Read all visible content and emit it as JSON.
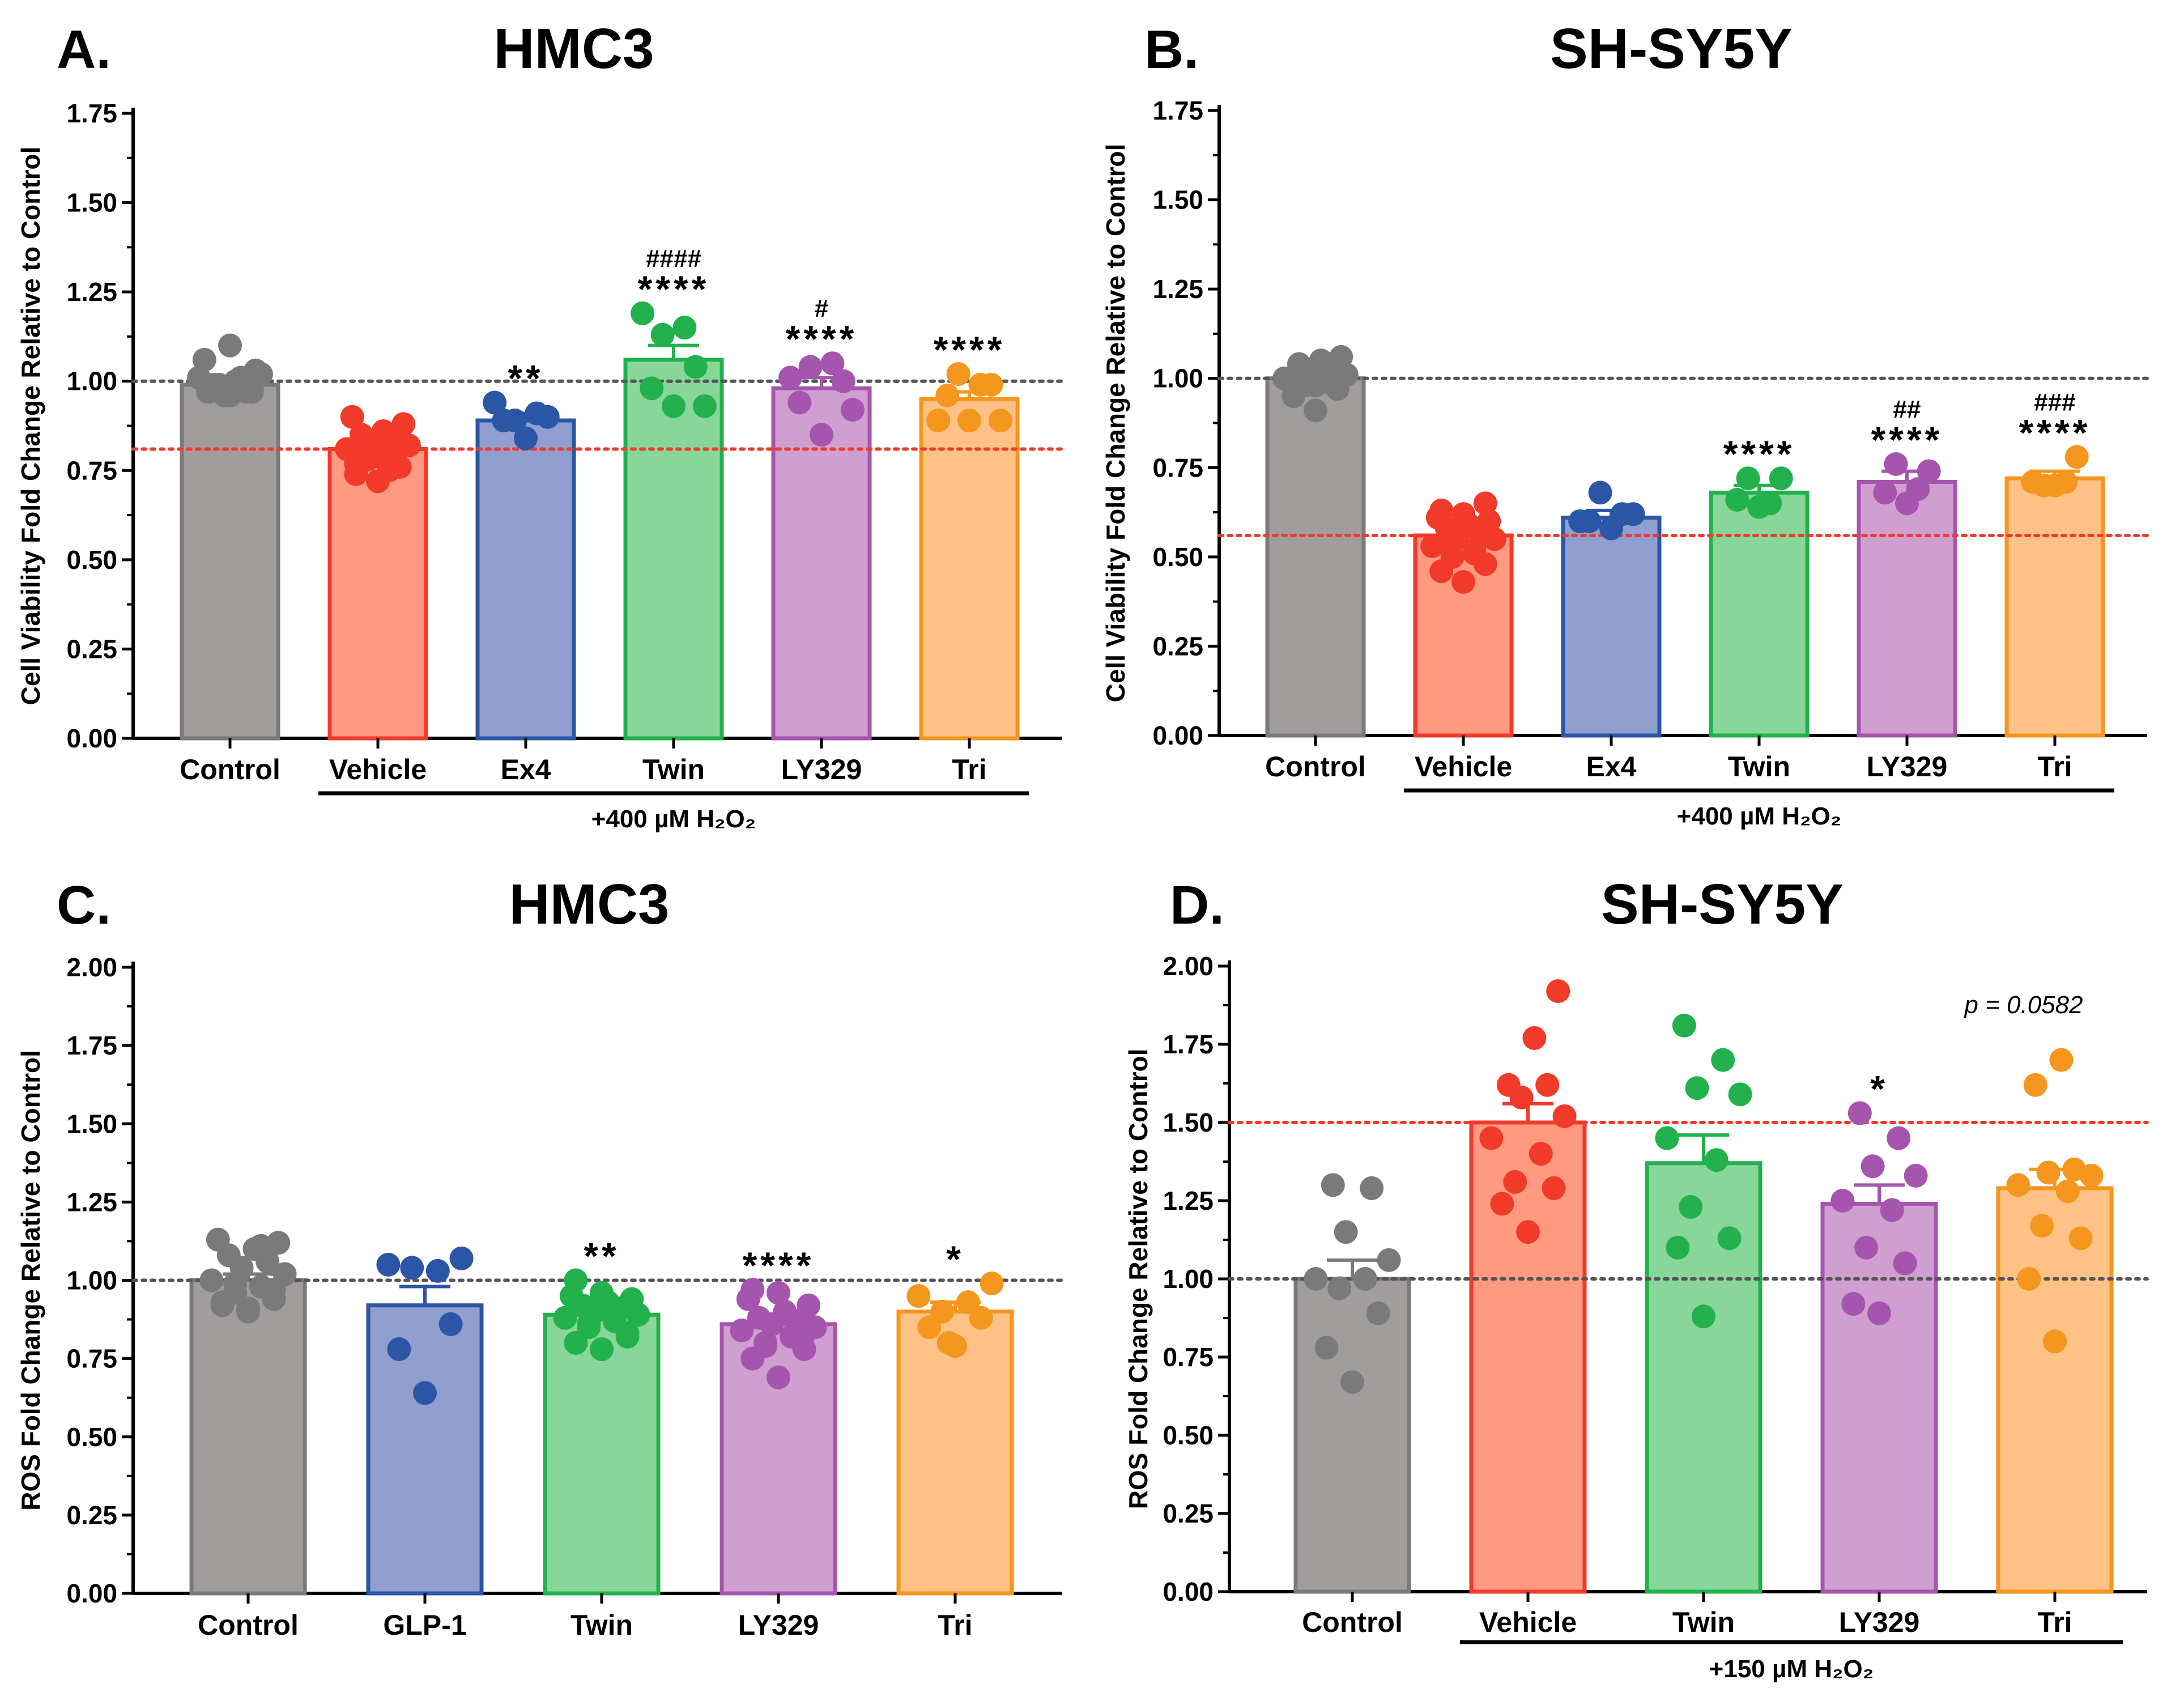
{
  "chart_data": [
    {
      "type": "bar",
      "panel": "A.",
      "title": "HMC3",
      "ylabel": "Cell Viability Fold Change Relative to Control",
      "ylim": [
        0,
        1.75
      ],
      "yticks": [
        "0.00",
        "0.25",
        "0.50",
        "0.75",
        "1.00",
        "1.25",
        "1.50",
        "1.75"
      ],
      "categories": [
        "Control",
        "Vehicle",
        "Ex4",
        "Twin",
        "LY329",
        "Tri"
      ],
      "values": [
        0.99,
        0.81,
        0.89,
        1.06,
        0.98,
        0.95
      ],
      "errors": [
        0.01,
        0.01,
        0.02,
        0.04,
        0.03,
        0.02
      ],
      "colors": [
        "#7a7a7a",
        "#f23a2a",
        "#2b56a6",
        "#22b14c",
        "#a555ad",
        "#f5961e"
      ],
      "fills": [
        "#a29d9d",
        "#ff9a80",
        "#909ed0",
        "#88d69a",
        "#cfa0cf",
        "#ffc286"
      ],
      "points": [
        [
          0.96,
          0.97,
          0.98,
          0.99,
          1.0,
          1.01,
          1.02,
          0.96,
          0.97,
          0.99,
          1.0,
          1.03,
          1.06,
          1.1,
          0.98,
          0.97,
          0.99,
          1.01
        ],
        [
          0.72,
          0.74,
          0.76,
          0.78,
          0.8,
          0.81,
          0.82,
          0.83,
          0.84,
          0.85,
          0.86,
          0.88,
          0.9,
          0.79,
          0.77,
          0.82,
          0.8,
          0.75
        ],
        [
          0.84,
          0.89,
          0.9,
          0.89,
          0.91,
          0.94
        ],
        [
          0.93,
          0.98,
          1.04,
          1.13,
          1.15,
          1.19,
          0.93
        ],
        [
          0.85,
          0.94,
          1.0,
          1.04,
          1.05,
          1.01,
          0.92
        ],
        [
          0.89,
          0.96,
          0.99,
          1.02,
          0.99,
          0.89,
          0.89
        ]
      ],
      "significance": [
        "",
        "",
        "**",
        "****",
        "****",
        "****"
      ],
      "hash": [
        "",
        "",
        "",
        "####",
        "#",
        ""
      ],
      "reference_lines": [
        {
          "value": 1.0,
          "color": "#555555"
        },
        {
          "value": 0.81,
          "color": "#f23a2a"
        }
      ],
      "group_bracket": {
        "label": "+400 µM H₂O₂",
        "from": 1,
        "to": 5
      }
    },
    {
      "type": "bar",
      "panel": "B.",
      "title": "SH-SY5Y",
      "ylabel": "Cell Viability Fold Change Relative to Control",
      "ylim": [
        0,
        1.75
      ],
      "yticks": [
        "0.00",
        "0.25",
        "0.50",
        "0.75",
        "1.00",
        "1.25",
        "1.50",
        "1.75"
      ],
      "categories": [
        "Control",
        "Vehicle",
        "Ex4",
        "Twin",
        "LY329",
        "Tri"
      ],
      "values": [
        1.0,
        0.56,
        0.61,
        0.68,
        0.71,
        0.72
      ],
      "errors": [
        0.01,
        0.01,
        0.02,
        0.02,
        0.03,
        0.02
      ],
      "colors": [
        "#7a7a7a",
        "#f23a2a",
        "#2b56a6",
        "#22b14c",
        "#a555ad",
        "#f5961e"
      ],
      "fills": [
        "#a29d9d",
        "#ff9a80",
        "#909ed0",
        "#88d69a",
        "#cfa0cf",
        "#ffc286"
      ],
      "points": [
        [
          0.91,
          0.95,
          0.97,
          0.98,
          0.99,
          1.0,
          1.01,
          1.02,
          1.03,
          1.04,
          1.05,
          1.06,
          1.0,
          0.98,
          0.99,
          1.01,
          1.02
        ],
        [
          0.43,
          0.46,
          0.48,
          0.5,
          0.52,
          0.53,
          0.55,
          0.56,
          0.57,
          0.58,
          0.59,
          0.6,
          0.61,
          0.62,
          0.63,
          0.65,
          0.54,
          0.51
        ],
        [
          0.58,
          0.6,
          0.62,
          0.68,
          0.62,
          0.6
        ],
        [
          0.64,
          0.66,
          0.72,
          0.72,
          0.65
        ],
        [
          0.65,
          0.68,
          0.74,
          0.76,
          0.69
        ],
        [
          0.7,
          0.71,
          0.78,
          0.7,
          0.71
        ]
      ],
      "significance": [
        "",
        "",
        "",
        "****",
        "****",
        "****"
      ],
      "hash": [
        "",
        "",
        "",
        "",
        "##",
        "###"
      ],
      "reference_lines": [
        {
          "value": 1.0,
          "color": "#555555"
        },
        {
          "value": 0.56,
          "color": "#f23a2a"
        }
      ],
      "group_bracket": {
        "label": "+400 µM H₂O₂",
        "from": 1,
        "to": 5
      }
    },
    {
      "type": "bar",
      "panel": "C.",
      "title": "HMC3",
      "ylabel": "ROS Fold Change Relative to Control",
      "ylim": [
        0,
        2.0
      ],
      "yticks": [
        "0.00",
        "0.25",
        "0.50",
        "0.75",
        "1.00",
        "1.25",
        "1.50",
        "1.75",
        "2.00"
      ],
      "categories": [
        "Control",
        "GLP-1",
        "Twin",
        "LY329",
        "Tri"
      ],
      "values": [
        1.0,
        0.92,
        0.89,
        0.86,
        0.9
      ],
      "errors": [
        0.02,
        0.06,
        0.02,
        0.02,
        0.03
      ],
      "colors": [
        "#7a7a7a",
        "#2b56a6",
        "#22b14c",
        "#a555ad",
        "#f5961e"
      ],
      "fills": [
        "#a29d9d",
        "#909ed0",
        "#88d69a",
        "#cfa0cf",
        "#ffc286"
      ],
      "points": [
        [
          0.9,
          0.92,
          0.94,
          0.96,
          0.98,
          1.0,
          1.02,
          1.04,
          1.06,
          1.08,
          1.1,
          1.12,
          1.13,
          0.91,
          0.93,
          0.97,
          0.99,
          1.11
        ],
        [
          0.64,
          0.78,
          0.86,
          1.04,
          1.03,
          1.05,
          1.07
        ],
        [
          0.78,
          0.8,
          0.83,
          0.85,
          0.87,
          0.88,
          0.89,
          0.9,
          0.91,
          0.92,
          0.93,
          0.94,
          0.95,
          0.96,
          1.0,
          0.82,
          0.86
        ],
        [
          0.69,
          0.75,
          0.78,
          0.8,
          0.82,
          0.84,
          0.85,
          0.86,
          0.87,
          0.88,
          0.9,
          0.92,
          0.94,
          0.96,
          0.97,
          0.83,
          0.79
        ],
        [
          0.79,
          0.85,
          0.88,
          0.9,
          0.93,
          0.95,
          0.99,
          0.8
        ]
      ],
      "significance": [
        "",
        "",
        "**",
        "****",
        "*"
      ],
      "hash": [
        "",
        "",
        "",
        "",
        ""
      ],
      "reference_lines": [
        {
          "value": 1.0,
          "color": "#555555"
        }
      ]
    },
    {
      "type": "bar",
      "panel": "D.",
      "title": "SH-SY5Y",
      "ylabel": "ROS Fold Change Relative to Control",
      "ylim": [
        0,
        2.0
      ],
      "yticks": [
        "0.00",
        "0.25",
        "0.50",
        "0.75",
        "1.00",
        "1.25",
        "1.50",
        "1.75",
        "2.00"
      ],
      "categories": [
        "Control",
        "Vehicle",
        "Twin",
        "LY329",
        "Tri"
      ],
      "values": [
        1.0,
        1.5,
        1.37,
        1.24,
        1.29
      ],
      "errors": [
        0.06,
        0.06,
        0.09,
        0.06,
        0.06
      ],
      "colors": [
        "#7a7a7a",
        "#f23a2a",
        "#22b14c",
        "#a555ad",
        "#f5961e"
      ],
      "fills": [
        "#a29d9d",
        "#ff9a80",
        "#88d69a",
        "#cfa0cf",
        "#ffc286"
      ],
      "points": [
        [
          0.67,
          0.78,
          0.89,
          0.97,
          1.0,
          1.0,
          1.06,
          1.15,
          1.29,
          1.3
        ],
        [
          1.15,
          1.24,
          1.29,
          1.31,
          1.4,
          1.45,
          1.52,
          1.58,
          1.62,
          1.62,
          1.77,
          1.92
        ],
        [
          0.88,
          1.1,
          1.13,
          1.23,
          1.38,
          1.45,
          1.59,
          1.61,
          1.7,
          1.81
        ],
        [
          0.89,
          0.92,
          1.05,
          1.1,
          1.22,
          1.25,
          1.33,
          1.36,
          1.45,
          1.53
        ],
        [
          0.8,
          1.0,
          1.13,
          1.17,
          1.28,
          1.3,
          1.33,
          1.34,
          1.35,
          1.62,
          1.7
        ]
      ],
      "significance": [
        "",
        "",
        "",
        "*",
        ""
      ],
      "hash": [
        "",
        "",
        "",
        "",
        ""
      ],
      "annotation": {
        "text": "p = 0.0582",
        "category": 4
      },
      "reference_lines": [
        {
          "value": 1.0,
          "color": "#555555"
        },
        {
          "value": 1.5,
          "color": "#f23a2a"
        }
      ],
      "group_bracket": {
        "label": "+150 µM H₂O₂",
        "from": 1,
        "to": 4
      }
    }
  ]
}
